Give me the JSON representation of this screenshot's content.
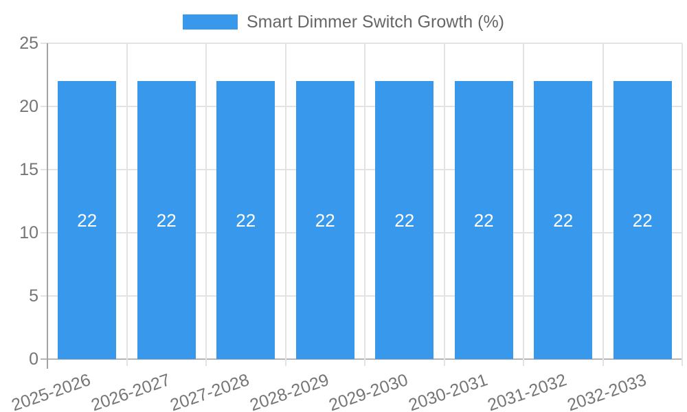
{
  "chart_data": {
    "type": "bar",
    "title": "Smart Dimmer Switch Growth (%)",
    "categories": [
      "2025-2026",
      "2026-2027",
      "2027-2028",
      "2028-2029",
      "2029-2030",
      "2030-2031",
      "2031-2032",
      "2032-2033"
    ],
    "values": [
      22,
      22,
      22,
      22,
      22,
      22,
      22,
      22
    ],
    "bar_labels": [
      "22",
      "22",
      "22",
      "22",
      "22",
      "22",
      "22",
      "22"
    ],
    "xlabel": "",
    "ylabel": "",
    "ylim": [
      0,
      25
    ],
    "yticks": [
      0,
      5,
      10,
      15,
      20,
      25
    ],
    "grid": true,
    "legend_position": "top",
    "colors": {
      "bar": "#3899ec",
      "bar_label": "#ffffff",
      "axis_text": "#757575",
      "legend_text": "#666666",
      "gridline": "#e3e3e3",
      "baseline": "#b5b5b5",
      "axis_line": "#a3a3a3"
    }
  }
}
